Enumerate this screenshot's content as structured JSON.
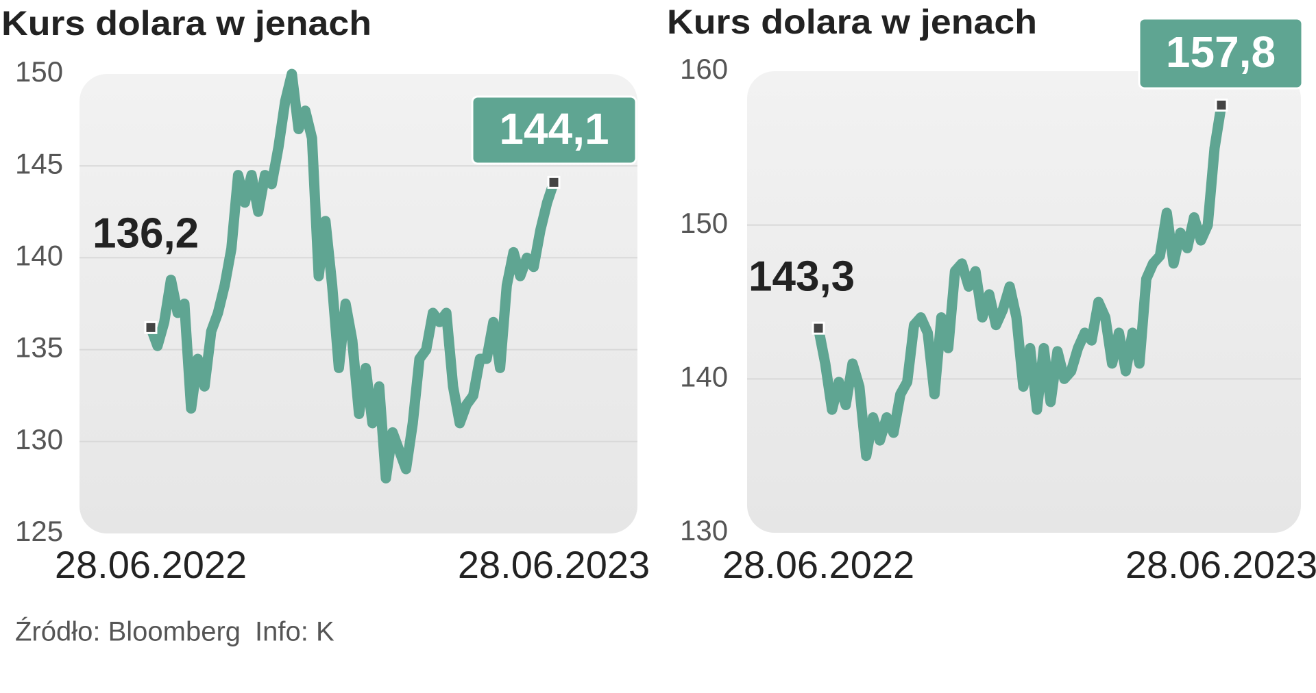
{
  "chart_data": [
    {
      "type": "line",
      "title": "Kurs dolara w jenach",
      "categories": [
        "28.06.2022",
        null,
        null,
        null,
        null,
        null,
        null,
        null,
        null,
        null,
        null,
        null,
        null,
        null,
        null,
        null,
        null,
        null,
        null,
        null,
        null,
        null,
        null,
        null,
        null,
        null,
        null,
        null,
        null,
        null,
        null,
        null,
        null,
        null,
        null,
        null,
        null,
        null,
        null,
        null,
        null,
        null,
        null,
        null,
        null,
        null,
        null,
        null,
        null,
        null,
        null,
        null,
        null,
        null,
        null,
        null,
        null,
        null,
        null,
        null,
        "28.06.2023"
      ],
      "values": [
        136.2,
        135.2,
        136.5,
        138.8,
        137,
        137.5,
        131.8,
        134.5,
        133,
        136,
        137,
        138.5,
        140.5,
        144.5,
        143,
        144.5,
        142.5,
        144.5,
        144,
        146,
        148.5,
        150,
        147,
        148,
        146.5,
        139,
        142,
        138.5,
        134,
        137.5,
        135.5,
        131.5,
        134,
        131,
        133,
        128,
        130.5,
        129.5,
        128.5,
        131,
        134.5,
        135,
        137,
        136.5,
        137,
        133,
        131,
        132,
        132.5,
        134.5,
        134.5,
        136.5,
        134,
        138.5,
        140.3,
        139,
        140,
        139.5,
        141.5,
        143,
        144.1
      ],
      "value_labels": [
        "136,2",
        null,
        null,
        null,
        null,
        null,
        null,
        null,
        null,
        null,
        null,
        null,
        null,
        null,
        null,
        null,
        null,
        null,
        null,
        null,
        null,
        null,
        null,
        null,
        null,
        null,
        null,
        null,
        null,
        null,
        null,
        null,
        null,
        null,
        null,
        null,
        null,
        null,
        null,
        null,
        null,
        null,
        null,
        null,
        null,
        null,
        null,
        null,
        null,
        null,
        null,
        null,
        null,
        null,
        null,
        null,
        null,
        null,
        null,
        null,
        "144,1"
      ],
      "color": "#5fa592",
      "ylim": [
        125,
        150
      ],
      "yticks": [
        125,
        130,
        135,
        140,
        145,
        150
      ],
      "grid": true
    },
    {
      "type": "line",
      "title": "Kurs dolara w jenach",
      "categories": [
        "28.06.2022",
        null,
        null,
        null,
        null,
        null,
        null,
        null,
        null,
        null,
        null,
        null,
        null,
        null,
        null,
        null,
        null,
        null,
        null,
        null,
        null,
        null,
        null,
        null,
        null,
        null,
        null,
        null,
        null,
        null,
        null,
        null,
        null,
        null,
        null,
        null,
        null,
        null,
        null,
        null,
        null,
        null,
        null,
        null,
        null,
        null,
        null,
        null,
        null,
        null,
        null,
        null,
        null,
        null,
        null,
        null,
        null,
        null,
        null,
        "28.06.2023"
      ],
      "values": [
        143.3,
        141,
        138,
        139.8,
        138.3,
        141,
        139.5,
        135,
        137.5,
        136,
        137.5,
        136.5,
        139,
        139.8,
        143.5,
        144,
        143,
        139,
        144,
        142,
        147,
        147.5,
        146,
        147,
        144,
        145.5,
        143.5,
        144.5,
        146,
        144,
        139.5,
        142,
        138,
        142,
        138.5,
        141.8,
        140,
        140.5,
        142,
        143,
        142.5,
        145,
        144,
        141,
        143,
        140.5,
        143,
        141,
        146.5,
        147.5,
        148,
        150.8,
        147.5,
        149.5,
        148.5,
        150.5,
        149,
        150,
        155,
        157.8
      ],
      "value_labels": [
        "143,3",
        null,
        null,
        null,
        null,
        null,
        null,
        null,
        null,
        null,
        null,
        null,
        null,
        null,
        null,
        null,
        null,
        null,
        null,
        null,
        null,
        null,
        null,
        null,
        null,
        null,
        null,
        null,
        null,
        null,
        null,
        null,
        null,
        null,
        null,
        null,
        null,
        null,
        null,
        null,
        null,
        null,
        null,
        null,
        null,
        null,
        null,
        null,
        null,
        null,
        null,
        null,
        null,
        null,
        null,
        null,
        null,
        null,
        null,
        "157,8"
      ],
      "color": "#5fa592",
      "ylim": [
        130,
        160
      ],
      "yticks": [
        130,
        140,
        150,
        160
      ],
      "grid": true
    }
  ],
  "source": "Źródło: Bloomberg",
  "info": "Info: K"
}
